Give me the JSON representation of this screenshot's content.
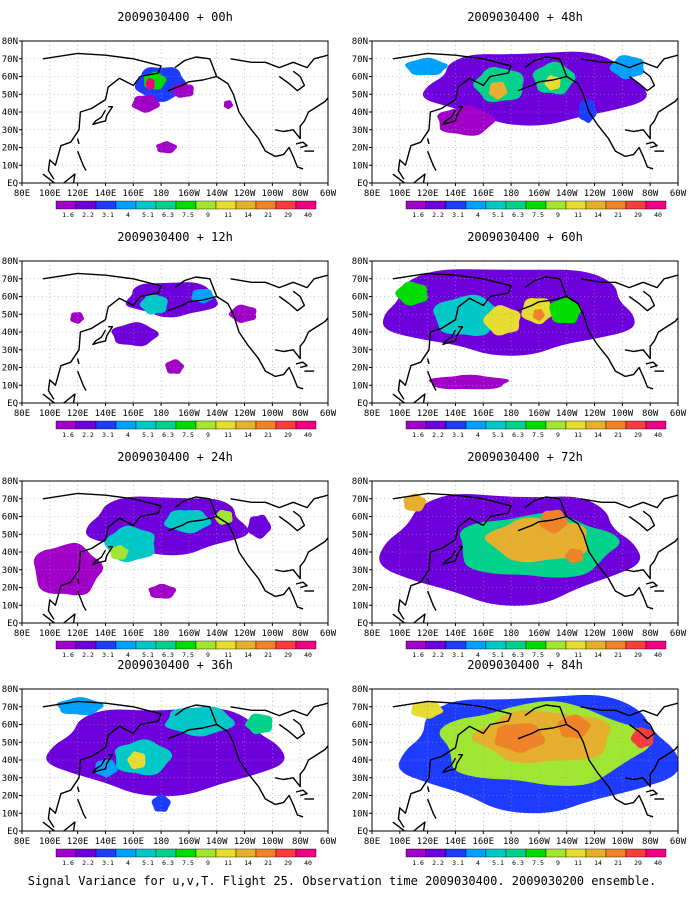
{
  "figure": {
    "caption": "Signal Variance for u,v,T. Flight 25. Observation time 2009030400. 2009030200 ensemble."
  },
  "palette": {
    "levels": [
      "1.6",
      "2.2",
      "3.1",
      "4",
      "5.1",
      "6.3",
      "7.5",
      "9",
      "11",
      "14",
      "21",
      "29",
      "40"
    ],
    "colors": [
      "#a000c8",
      "#6e00dc",
      "#1e3cff",
      "#00a0ff",
      "#00c8c8",
      "#00d28c",
      "#00dc00",
      "#a0e632",
      "#e6dc32",
      "#e6af2d",
      "#f08228",
      "#fa3c3c",
      "#f00082"
    ]
  },
  "axes": {
    "x_ticks": [
      "80E",
      "100E",
      "120E",
      "140E",
      "160E",
      "180",
      "160W",
      "140W",
      "120W",
      "100W",
      "80W",
      "60W"
    ],
    "y_ticks": [
      "EQ",
      "10N",
      "20N",
      "30N",
      "40N",
      "50N",
      "60N",
      "70N",
      "80N"
    ]
  },
  "chart_data": [
    {
      "type": "heatmap",
      "title": "2009030400 + 00h",
      "blobs": [
        {
          "lon": 180,
          "lat": 57,
          "rx": 22,
          "ry": 12,
          "level": 2
        },
        {
          "lon": 175,
          "lat": 58,
          "rx": 10,
          "ry": 6,
          "level": 6
        },
        {
          "lon": 172,
          "lat": 56,
          "rx": 4,
          "ry": 4,
          "level": 12
        },
        {
          "lon": 168,
          "lat": 45,
          "rx": 12,
          "ry": 6,
          "level": 0
        },
        {
          "lon": 183,
          "lat": 20,
          "rx": 9,
          "ry": 4,
          "level": 0
        },
        {
          "lon": 195,
          "lat": 52,
          "rx": 10,
          "ry": 5,
          "level": 0
        },
        {
          "lon": 228,
          "lat": 44,
          "rx": 4,
          "ry": 3,
          "level": 0
        }
      ]
    },
    {
      "type": "heatmap",
      "title": "2009030400 + 48h",
      "blobs": [
        {
          "lon": 190,
          "lat": 55,
          "rx": 95,
          "ry": 25,
          "level": 1
        },
        {
          "lon": 145,
          "lat": 35,
          "rx": 25,
          "ry": 10,
          "level": 0
        },
        {
          "lon": 170,
          "lat": 55,
          "rx": 22,
          "ry": 12,
          "level": 5
        },
        {
          "lon": 170,
          "lat": 52,
          "rx": 8,
          "ry": 6,
          "level": 9
        },
        {
          "lon": 210,
          "lat": 58,
          "rx": 18,
          "ry": 11,
          "level": 5
        },
        {
          "lon": 210,
          "lat": 56,
          "rx": 7,
          "ry": 5,
          "level": 8
        },
        {
          "lon": 235,
          "lat": 40,
          "rx": 8,
          "ry": 8,
          "level": 2
        },
        {
          "lon": 120,
          "lat": 65,
          "rx": 18,
          "ry": 6,
          "level": 3
        },
        {
          "lon": 265,
          "lat": 65,
          "rx": 15,
          "ry": 8,
          "level": 3
        }
      ]
    },
    {
      "type": "heatmap",
      "title": "2009030400 + 12h",
      "blobs": [
        {
          "lon": 185,
          "lat": 58,
          "rx": 40,
          "ry": 12,
          "level": 1
        },
        {
          "lon": 160,
          "lat": 38,
          "rx": 20,
          "ry": 8,
          "level": 1
        },
        {
          "lon": 175,
          "lat": 55,
          "rx": 12,
          "ry": 7,
          "level": 4
        },
        {
          "lon": 210,
          "lat": 60,
          "rx": 10,
          "ry": 5,
          "level": 3
        },
        {
          "lon": 190,
          "lat": 20,
          "rx": 8,
          "ry": 5,
          "level": 0
        },
        {
          "lon": 240,
          "lat": 50,
          "rx": 12,
          "ry": 6,
          "level": 0
        },
        {
          "lon": 120,
          "lat": 48,
          "rx": 6,
          "ry": 4,
          "level": 0
        }
      ]
    },
    {
      "type": "heatmap",
      "title": "2009030400 + 60h",
      "blobs": [
        {
          "lon": 180,
          "lat": 50,
          "rx": 110,
          "ry": 30,
          "level": 1
        },
        {
          "lon": 150,
          "lat": 48,
          "rx": 30,
          "ry": 14,
          "level": 4
        },
        {
          "lon": 175,
          "lat": 46,
          "rx": 16,
          "ry": 10,
          "level": 8
        },
        {
          "lon": 200,
          "lat": 52,
          "rx": 14,
          "ry": 9,
          "level": 8
        },
        {
          "lon": 220,
          "lat": 52,
          "rx": 14,
          "ry": 9,
          "level": 6
        },
        {
          "lon": 110,
          "lat": 62,
          "rx": 14,
          "ry": 8,
          "level": 6
        },
        {
          "lon": 200,
          "lat": 50,
          "rx": 5,
          "ry": 4,
          "level": 10
        },
        {
          "lon": 150,
          "lat": 12,
          "rx": 35,
          "ry": 5,
          "level": 0
        }
      ]
    },
    {
      "type": "heatmap",
      "title": "2009030400 + 24h",
      "blobs": [
        {
          "lon": 190,
          "lat": 55,
          "rx": 70,
          "ry": 20,
          "level": 1
        },
        {
          "lon": 115,
          "lat": 30,
          "rx": 30,
          "ry": 18,
          "level": 0
        },
        {
          "lon": 160,
          "lat": 45,
          "rx": 22,
          "ry": 12,
          "level": 4
        },
        {
          "lon": 200,
          "lat": 58,
          "rx": 20,
          "ry": 8,
          "level": 4
        },
        {
          "lon": 150,
          "lat": 40,
          "rx": 8,
          "ry": 5,
          "level": 7
        },
        {
          "lon": 225,
          "lat": 60,
          "rx": 8,
          "ry": 5,
          "level": 7
        },
        {
          "lon": 250,
          "lat": 55,
          "rx": 10,
          "ry": 8,
          "level": 1
        },
        {
          "lon": 180,
          "lat": 18,
          "rx": 12,
          "ry": 5,
          "level": 0
        }
      ]
    },
    {
      "type": "heatmap",
      "title": "2009030400 + 72h",
      "blobs": [
        {
          "lon": 185,
          "lat": 45,
          "rx": 110,
          "ry": 38,
          "level": 1
        },
        {
          "lon": 200,
          "lat": 45,
          "rx": 70,
          "ry": 22,
          "level": 5
        },
        {
          "lon": 200,
          "lat": 48,
          "rx": 45,
          "ry": 15,
          "level": 9
        },
        {
          "lon": 210,
          "lat": 58,
          "rx": 12,
          "ry": 8,
          "level": 10
        },
        {
          "lon": 110,
          "lat": 68,
          "rx": 10,
          "ry": 6,
          "level": 9
        },
        {
          "lon": 225,
          "lat": 38,
          "rx": 8,
          "ry": 5,
          "level": 10
        }
      ]
    },
    {
      "type": "heatmap",
      "title": "2009030400 + 36h",
      "blobs": [
        {
          "lon": 180,
          "lat": 48,
          "rx": 100,
          "ry": 30,
          "level": 1
        },
        {
          "lon": 165,
          "lat": 42,
          "rx": 25,
          "ry": 12,
          "level": 4
        },
        {
          "lon": 162,
          "lat": 40,
          "rx": 8,
          "ry": 6,
          "level": 8
        },
        {
          "lon": 205,
          "lat": 62,
          "rx": 30,
          "ry": 10,
          "level": 4
        },
        {
          "lon": 120,
          "lat": 70,
          "rx": 20,
          "ry": 6,
          "level": 3
        },
        {
          "lon": 250,
          "lat": 60,
          "rx": 12,
          "ry": 7,
          "level": 5
        },
        {
          "lon": 140,
          "lat": 35,
          "rx": 10,
          "ry": 6,
          "level": 3
        },
        {
          "lon": 180,
          "lat": 15,
          "rx": 8,
          "ry": 6,
          "level": 2
        }
      ]
    },
    {
      "type": "heatmap",
      "title": "2009030400 + 84h",
      "blobs": [
        {
          "lon": 190,
          "lat": 45,
          "rx": 120,
          "ry": 40,
          "level": 2
        },
        {
          "lon": 195,
          "lat": 48,
          "rx": 90,
          "ry": 28,
          "level": 7
        },
        {
          "lon": 200,
          "lat": 52,
          "rx": 60,
          "ry": 18,
          "level": 9
        },
        {
          "lon": 185,
          "lat": 52,
          "rx": 22,
          "ry": 10,
          "level": 10
        },
        {
          "lon": 225,
          "lat": 58,
          "rx": 14,
          "ry": 8,
          "level": 10
        },
        {
          "lon": 275,
          "lat": 52,
          "rx": 10,
          "ry": 7,
          "level": 11
        },
        {
          "lon": 120,
          "lat": 68,
          "rx": 14,
          "ry": 6,
          "level": 8
        }
      ]
    }
  ]
}
